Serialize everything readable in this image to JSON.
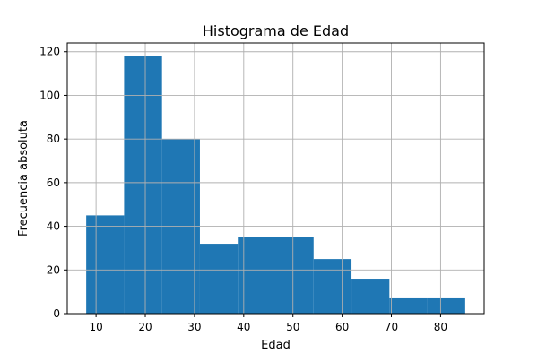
{
  "chart_data": {
    "type": "bar",
    "title": "Histograma de Edad",
    "xlabel": "Edad",
    "ylabel": "Frecuencia absoluta",
    "bins": [
      {
        "start": 8.0,
        "end": 15.7,
        "value": 45
      },
      {
        "start": 15.7,
        "end": 23.4,
        "value": 118
      },
      {
        "start": 23.4,
        "end": 31.1,
        "value": 80
      },
      {
        "start": 31.1,
        "end": 38.8,
        "value": 32
      },
      {
        "start": 38.8,
        "end": 46.5,
        "value": 35
      },
      {
        "start": 46.5,
        "end": 54.2,
        "value": 35
      },
      {
        "start": 54.2,
        "end": 61.9,
        "value": 25
      },
      {
        "start": 61.9,
        "end": 69.6,
        "value": 16
      },
      {
        "start": 69.6,
        "end": 77.3,
        "value": 7
      },
      {
        "start": 77.3,
        "end": 85.0,
        "value": 7
      }
    ],
    "xlim": [
      4.15,
      88.85
    ],
    "ylim": [
      0,
      124
    ],
    "xticks": [
      10,
      20,
      30,
      40,
      50,
      60,
      70,
      80
    ],
    "yticks": [
      0,
      20,
      40,
      60,
      80,
      100,
      120
    ],
    "grid": true,
    "bar_color": "#1f77b4"
  }
}
